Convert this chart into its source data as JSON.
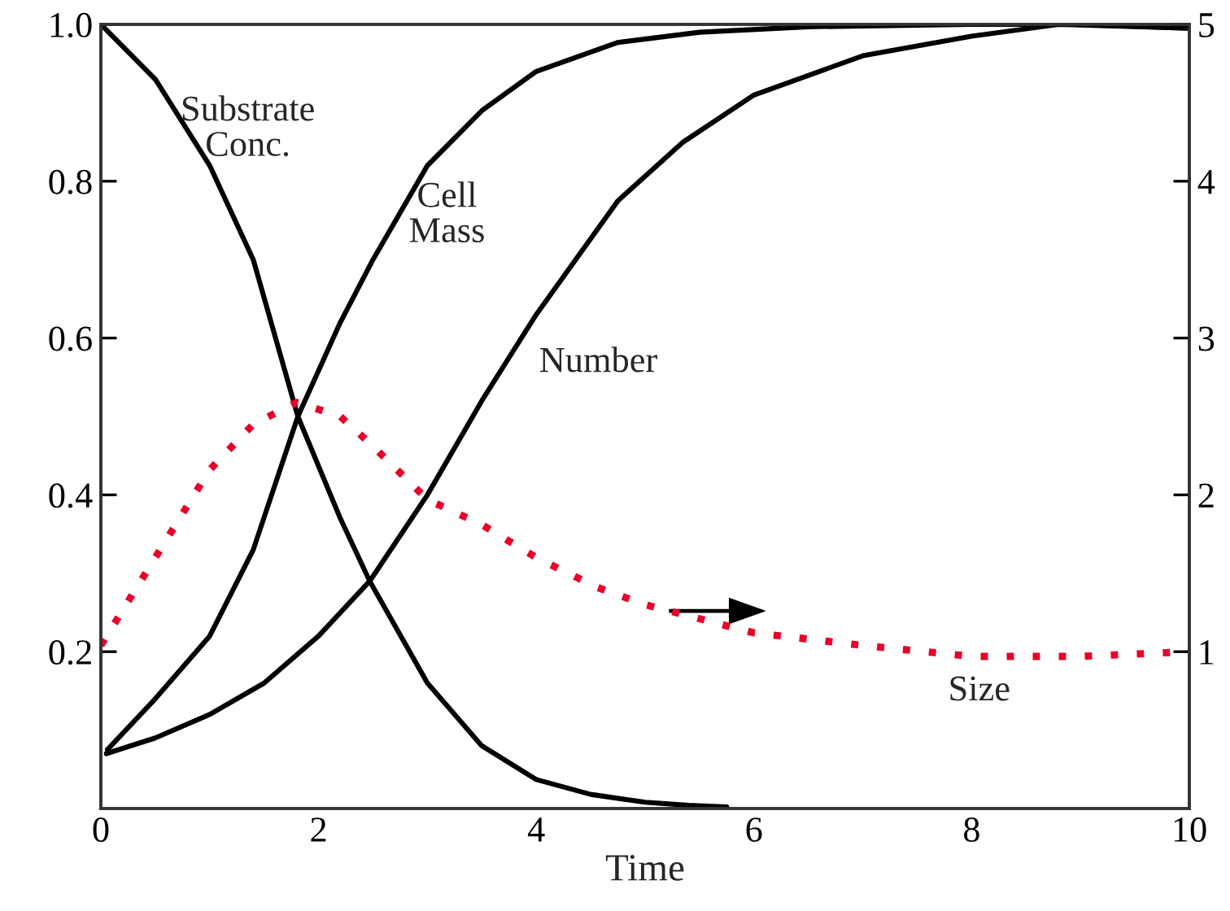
{
  "chart_data": {
    "type": "line",
    "xlabel": "Time",
    "xlim": [
      0,
      10
    ],
    "xticks": [
      0,
      2,
      4,
      6,
      8,
      10
    ],
    "ylim": [
      0,
      1
    ],
    "yticks": [
      {
        "value": 0.2,
        "label": "0.2"
      },
      {
        "value": 0.4,
        "label": "0.4"
      },
      {
        "value": 0.6,
        "label": "0.6"
      },
      {
        "value": 0.8,
        "label": "0.8"
      },
      {
        "value": 1,
        "label": "1.0"
      }
    ],
    "y2lim": [
      0,
      5
    ],
    "y2ticks": [
      1,
      2,
      3,
      4,
      5
    ],
    "grid": false,
    "legend": false,
    "marker": "none",
    "series": [
      {
        "name": "Substrate\nConc.",
        "color": "#000000",
        "line_style": "solid",
        "x": [
          0,
          0.5,
          1,
          1.4,
          1.81,
          2.2,
          2.47,
          3,
          3.5,
          4,
          4.5,
          5,
          5.4,
          5.75
        ],
        "values": [
          1.0,
          0.93,
          0.82,
          0.7,
          0.5,
          0.37,
          0.29,
          0.16,
          0.08,
          0.037,
          0.018,
          0.008,
          0.004,
          0.002
        ]
      },
      {
        "name": "Cell\nMass",
        "color": "#000000",
        "line_style": "solid",
        "x": [
          0.06,
          0.5,
          1,
          1.4,
          1.81,
          2.2,
          2.5,
          3,
          3.5,
          4,
          4.75,
          5.5,
          6.5,
          8,
          9,
          10
        ],
        "values": [
          0.075,
          0.14,
          0.22,
          0.33,
          0.5,
          0.62,
          0.7,
          0.82,
          0.89,
          0.94,
          0.977,
          0.99,
          0.997,
          1.0,
          1.0,
          0.995
        ]
      },
      {
        "name": "Number",
        "color": "#000000",
        "line_style": "solid",
        "x": [
          0.05,
          0.5,
          1,
          1.5,
          2,
          2.47,
          3,
          3.5,
          4,
          4.75,
          5.35,
          6,
          7,
          8,
          8.8,
          10
        ],
        "values": [
          0.07,
          0.09,
          0.12,
          0.16,
          0.22,
          0.29,
          0.4,
          0.52,
          0.63,
          0.775,
          0.85,
          0.91,
          0.96,
          0.985,
          1.0,
          0.995
        ]
      },
      {
        "name": "Size",
        "color": "#e8002a",
        "line_style": "dotted",
        "axis": "y2",
        "x": [
          0,
          0.5,
          1,
          1.4,
          1.8,
          2.2,
          2.5,
          3,
          3.5,
          4,
          4.56,
          5,
          6,
          7,
          8,
          9,
          10
        ],
        "values": [
          1.04,
          1.6,
          2.16,
          2.45,
          2.59,
          2.5,
          2.31,
          1.97,
          1.81,
          1.6,
          1.41,
          1.3,
          1.12,
          1.04,
          0.97,
          0.97,
          1.0
        ]
      }
    ]
  }
}
